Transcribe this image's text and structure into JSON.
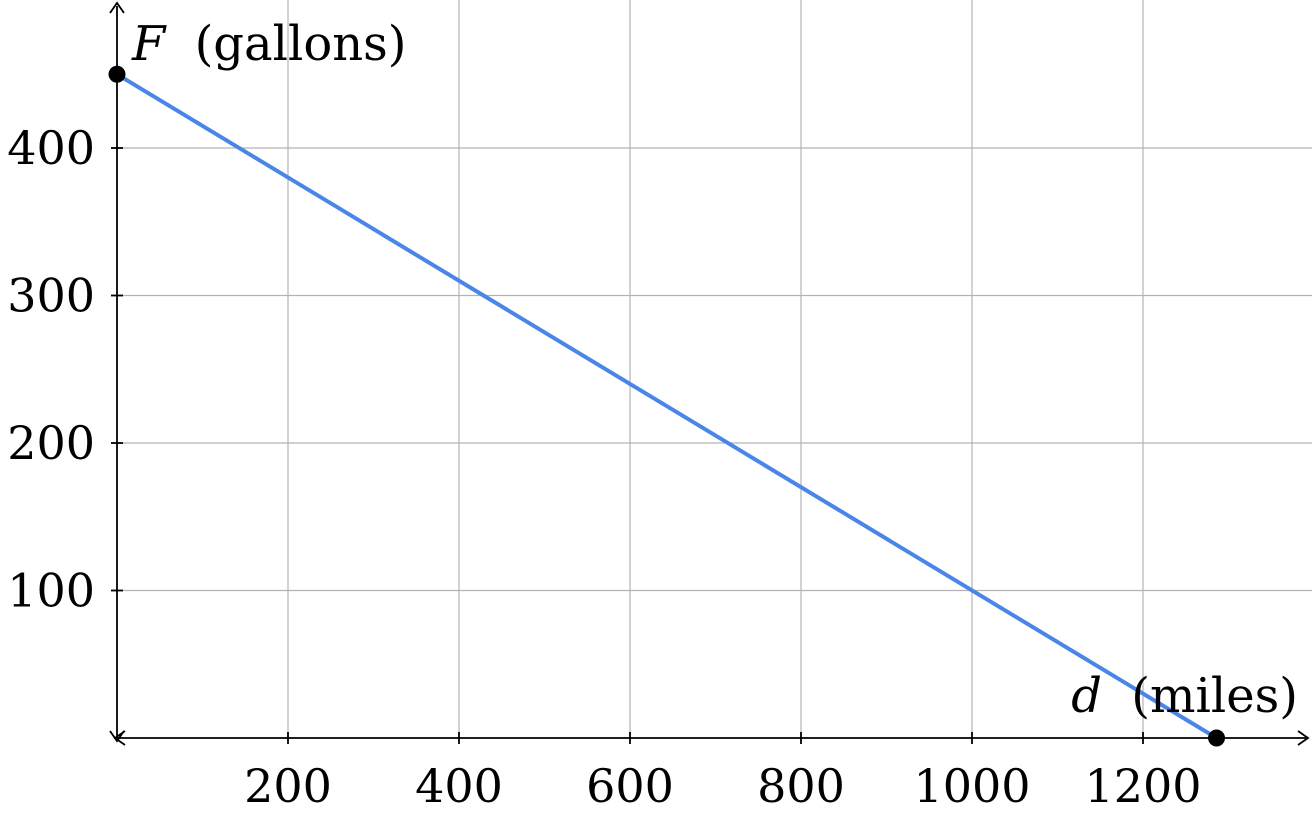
{
  "chart_data": {
    "type": "line",
    "xlabel": {
      "variable": "d",
      "unit": "(miles)"
    },
    "ylabel": {
      "variable": "F",
      "unit": "(gallons)"
    },
    "xlim": [
      0,
      1400
    ],
    "ylim": [
      0,
      450
    ],
    "x_ticks": [
      200,
      400,
      600,
      800,
      1000,
      1200
    ],
    "y_ticks": [
      100,
      200,
      300,
      400
    ],
    "x_tick_labels": [
      "200",
      "400",
      "600",
      "800",
      "1000",
      "1200"
    ],
    "y_tick_labels": [
      "100",
      "200",
      "300",
      "400"
    ],
    "grid": true,
    "series": [
      {
        "color": "#4a86e8",
        "x": [
          0,
          1286
        ],
        "y": [
          450,
          0
        ]
      }
    ],
    "points": [
      {
        "x": 0,
        "y": 450
      },
      {
        "x": 1286,
        "y": 0
      }
    ]
  }
}
